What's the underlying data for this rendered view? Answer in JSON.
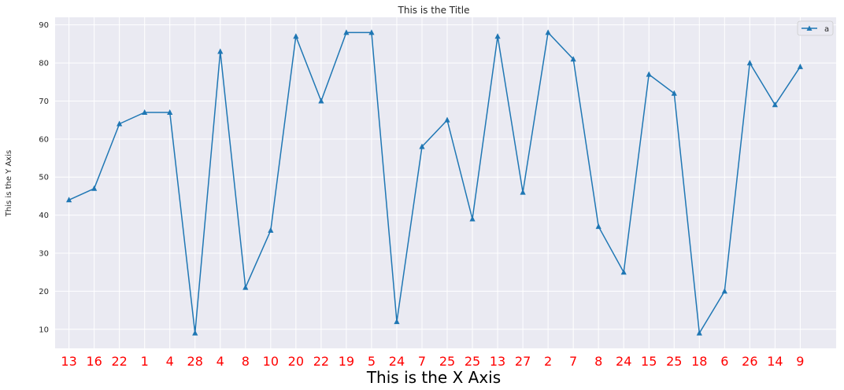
{
  "chart_data": {
    "type": "line",
    "title": "This is the Title",
    "xlabel": "This is the X Axis",
    "ylabel": "This is the Y Axis",
    "categories": [
      "13",
      "16",
      "22",
      "1",
      "4",
      "28",
      "4",
      "8",
      "10",
      "20",
      "22",
      "19",
      "5",
      "24",
      "7",
      "25",
      "25",
      "13",
      "27",
      "2",
      "7",
      "8",
      "24",
      "15",
      "25",
      "18",
      "6",
      "26",
      "14",
      "9"
    ],
    "series": [
      {
        "name": "a",
        "values": [
          44,
          47,
          64,
          67,
          67,
          9,
          83,
          21,
          36,
          87,
          70,
          88,
          88,
          12,
          58,
          65,
          39,
          87,
          46,
          88,
          81,
          37,
          25,
          77,
          72,
          9,
          20,
          80,
          69,
          79
        ],
        "color": "#1f77b4",
        "marker": "triangle"
      }
    ],
    "yticks": [
      10,
      20,
      30,
      40,
      50,
      60,
      70,
      80,
      90
    ],
    "ylim": [
      5,
      92
    ],
    "grid": true,
    "legend_position": "top-right",
    "colors": {
      "plot_background": "#eaeaf2",
      "grid": "#ffffff",
      "xtick_labels": "#ff0000"
    }
  }
}
